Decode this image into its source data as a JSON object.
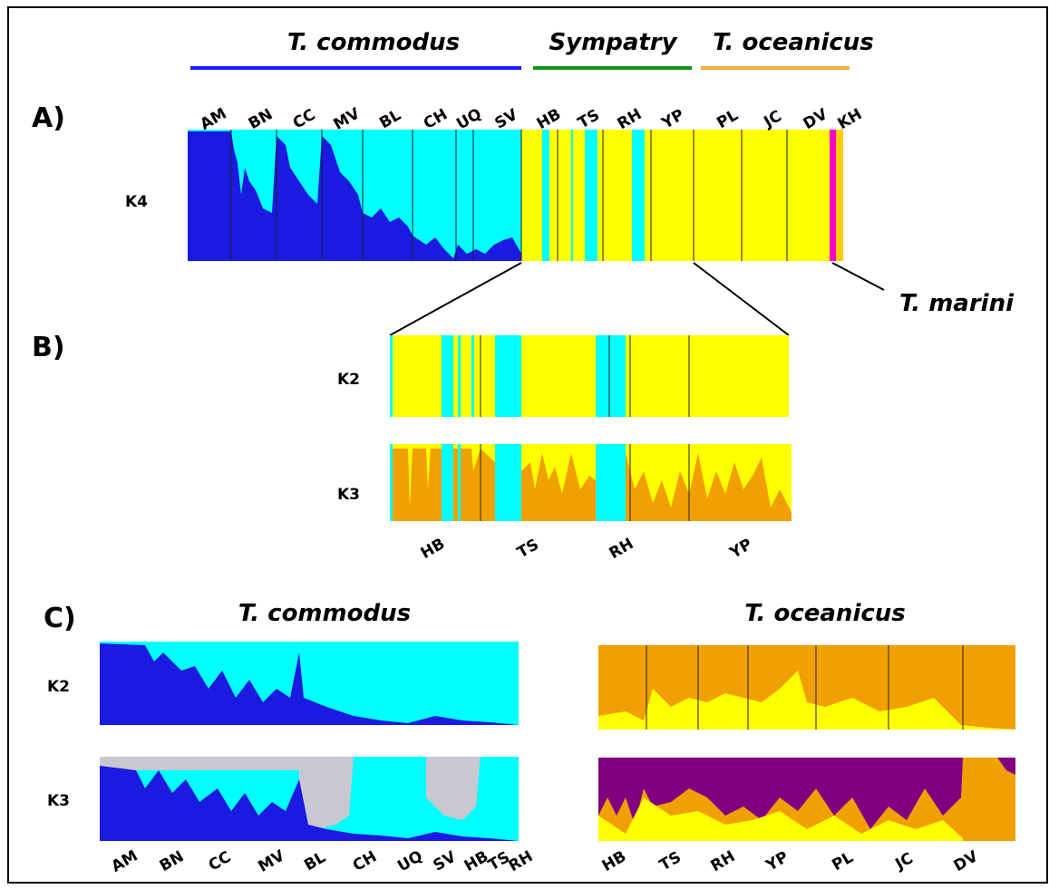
{
  "header": {
    "groups": [
      "T. commodus",
      "Sympatry",
      "T. oceanicus"
    ]
  },
  "panel_a": {
    "label": "A)",
    "k_label": "K4",
    "populations": [
      "AM",
      "BN",
      "CC",
      "MV",
      "BL",
      "CH",
      "UQ",
      "SV",
      "HB",
      "TS",
      "RH",
      "YP",
      "PL",
      "JC",
      "DV",
      "KH"
    ],
    "annotation": "T. marini"
  },
  "panel_b": {
    "label": "B)",
    "k_labels": [
      "K2",
      "K3"
    ],
    "populations": [
      "HB",
      "TS",
      "RH",
      "YP"
    ]
  },
  "panel_c": {
    "label": "C)",
    "left": {
      "title": "T. commodus",
      "k_labels": [
        "K2",
        "K3"
      ],
      "populations": [
        "AM",
        "BN",
        "CC",
        "MV",
        "BL",
        "CH",
        "UQ",
        "SV",
        "HB",
        "TS",
        "RH"
      ]
    },
    "right": {
      "title": "T. oceanicus",
      "k_labels": [
        "K2",
        "K3"
      ],
      "populations": [
        "HB",
        "TS",
        "RH",
        "YP",
        "PL",
        "JC",
        "DV"
      ]
    }
  }
}
